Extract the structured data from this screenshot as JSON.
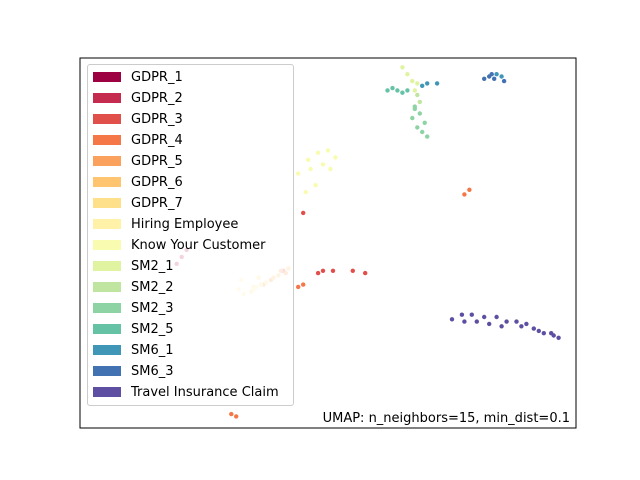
{
  "chart_data": {
    "type": "scatter",
    "title": "",
    "xlabel": "",
    "ylabel": "",
    "xlim": [
      -10,
      10
    ],
    "ylim": [
      -8,
      8
    ],
    "axes_ticks": "none",
    "legend_position": "upper-left",
    "annotation": "UMAP: n_neighbors=15, min_dist=0.1",
    "series": [
      {
        "name": "GDPR_1",
        "color": "#9e0142",
        "points": []
      },
      {
        "name": "GDPR_2",
        "color": "#c42b4e",
        "points": [
          [
            -6.1,
            -0.9
          ],
          [
            -5.9,
            -0.6
          ],
          [
            -5.7,
            -0.3
          ]
        ]
      },
      {
        "name": "GDPR_3",
        "color": "#e04f4a",
        "points": [
          [
            -0.4,
            -1.3
          ],
          [
            0.2,
            -1.2
          ],
          [
            1.0,
            -1.2
          ],
          [
            1.5,
            -1.3
          ],
          [
            -1.8,
            -1.2
          ],
          [
            -1.0,
            1.3
          ],
          [
            -0.2,
            -1.2
          ]
        ]
      },
      {
        "name": "GDPR_4",
        "color": "#f57747",
        "points": [
          [
            5.5,
            2.1
          ],
          [
            5.7,
            2.3
          ],
          [
            -3.9,
            -7.4
          ],
          [
            -3.7,
            -7.5
          ],
          [
            -1.0,
            -1.8
          ],
          [
            -1.2,
            -1.9
          ]
        ]
      },
      {
        "name": "GDPR_5",
        "color": "#fba15e",
        "points": [
          [
            -1.9,
            -1.2
          ],
          [
            -2.3,
            -1.6
          ],
          [
            -2.6,
            -1.8
          ],
          [
            -1.7,
            -1.3
          ]
        ]
      },
      {
        "name": "GDPR_6",
        "color": "#fec470",
        "points": [
          [
            -1.6,
            -1.1
          ],
          [
            -2.2,
            -1.5
          ],
          [
            -2.0,
            -1.4
          ]
        ]
      },
      {
        "name": "GDPR_7",
        "color": "#fee08b",
        "points": [
          [
            -2.8,
            -1.5
          ],
          [
            -3.0,
            -1.9
          ],
          [
            -2.5,
            -1.7
          ],
          [
            -3.1,
            -2.1
          ],
          [
            -2.7,
            -1.8
          ]
        ]
      },
      {
        "name": "Hiring Employee",
        "color": "#fff1a8",
        "points": [
          [
            -3.5,
            -1.6
          ],
          [
            -3.6,
            -2.0
          ],
          [
            -2.9,
            -1.9
          ],
          [
            -3.4,
            -2.2
          ],
          [
            -3.0,
            -2.0
          ]
        ]
      },
      {
        "name": "Know Your Customer",
        "color": "#f8fbb0",
        "points": [
          [
            -1.2,
            3.0
          ],
          [
            -0.8,
            3.6
          ],
          [
            -0.4,
            3.9
          ],
          [
            0.0,
            4.0
          ],
          [
            0.3,
            3.7
          ],
          [
            0.1,
            3.2
          ],
          [
            -0.5,
            2.5
          ],
          [
            -0.9,
            2.2
          ],
          [
            -0.2,
            3.4
          ],
          [
            -0.7,
            3.2
          ]
        ]
      },
      {
        "name": "SM2_1",
        "color": "#e0f3a1",
        "points": [
          [
            3.0,
            7.6
          ],
          [
            3.2,
            7.3
          ],
          [
            3.4,
            7.0
          ],
          [
            3.5,
            6.6
          ],
          [
            3.6,
            6.9
          ]
        ]
      },
      {
        "name": "SM2_2",
        "color": "#bfe5a0",
        "points": [
          [
            3.6,
            6.4
          ],
          [
            3.7,
            6.1
          ]
        ]
      },
      {
        "name": "SM2_3",
        "color": "#8dd3a4",
        "points": [
          [
            3.5,
            5.8
          ],
          [
            3.4,
            5.4
          ],
          [
            3.6,
            5.0
          ],
          [
            3.8,
            4.8
          ],
          [
            4.0,
            4.6
          ],
          [
            3.7,
            5.6
          ],
          [
            3.9,
            5.2
          ],
          [
            3.5,
            5.9
          ]
        ]
      },
      {
        "name": "SM2_5",
        "color": "#66c2a5",
        "points": [
          [
            2.4,
            6.6
          ],
          [
            2.8,
            6.6
          ],
          [
            3.2,
            6.6
          ],
          [
            2.6,
            6.7
          ],
          [
            3.0,
            6.5
          ]
        ]
      },
      {
        "name": "SM6_1",
        "color": "#3f96b7",
        "points": [
          [
            3.8,
            6.8
          ],
          [
            4.0,
            6.9
          ],
          [
            4.4,
            6.9
          ],
          [
            6.8,
            7.3
          ],
          [
            7.0,
            7.2
          ]
        ]
      },
      {
        "name": "SM6_3",
        "color": "#4272b2",
        "points": [
          [
            6.3,
            7.1
          ],
          [
            6.5,
            7.2
          ],
          [
            6.7,
            7.1
          ],
          [
            6.6,
            7.3
          ],
          [
            7.1,
            7.0
          ]
        ]
      },
      {
        "name": "Travel Insurance Claim",
        "color": "#5e4fa2",
        "points": [
          [
            5.0,
            -3.3
          ],
          [
            5.4,
            -3.1
          ],
          [
            5.8,
            -3.1
          ],
          [
            6.3,
            -3.2
          ],
          [
            6.8,
            -3.2
          ],
          [
            7.2,
            -3.4
          ],
          [
            7.6,
            -3.4
          ],
          [
            8.0,
            -3.5
          ],
          [
            8.3,
            -3.7
          ],
          [
            8.7,
            -3.9
          ],
          [
            9.1,
            -4.0
          ],
          [
            9.3,
            -4.1
          ],
          [
            6.0,
            -3.4
          ],
          [
            7.0,
            -3.6
          ],
          [
            7.8,
            -3.6
          ],
          [
            5.5,
            -3.4
          ],
          [
            8.5,
            -3.8
          ],
          [
            6.5,
            -3.5
          ],
          [
            9.0,
            -3.9
          ]
        ]
      }
    ]
  }
}
